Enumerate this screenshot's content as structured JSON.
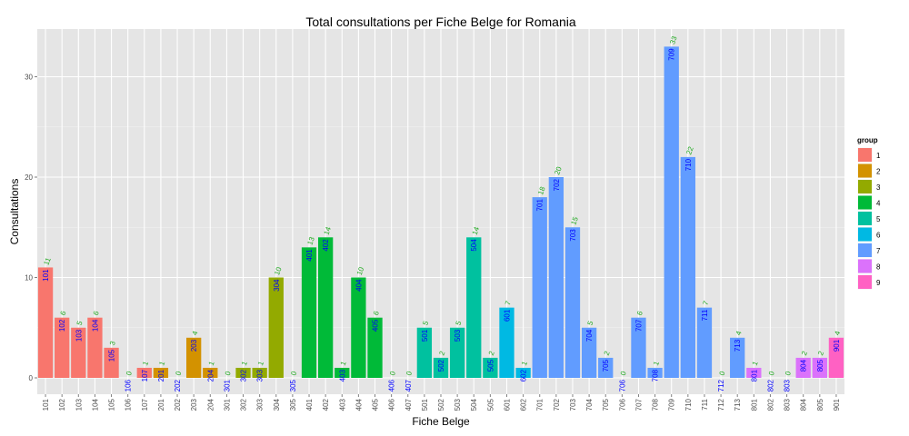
{
  "chart_data": {
    "type": "bar",
    "title": "Total consultations per Fiche Belge for Romania",
    "xlabel": "Fiche Belge",
    "ylabel": "Consultations",
    "ylim": [
      0,
      34
    ],
    "yticks": [
      0,
      10,
      20,
      30
    ],
    "grid": true,
    "legend_placement": "right",
    "legend_title": "group",
    "groups": [
      {
        "name": "1",
        "color": "#F8766D"
      },
      {
        "name": "2",
        "color": "#D39200"
      },
      {
        "name": "3",
        "color": "#93AA00"
      },
      {
        "name": "4",
        "color": "#00BA38"
      },
      {
        "name": "5",
        "color": "#00C19F"
      },
      {
        "name": "6",
        "color": "#00B9E3"
      },
      {
        "name": "7",
        "color": "#619CFF"
      },
      {
        "name": "8",
        "color": "#DB72FB"
      },
      {
        "name": "9",
        "color": "#FF61C3"
      }
    ],
    "categories": [
      "101",
      "102",
      "103",
      "104",
      "105",
      "106",
      "107",
      "201",
      "202",
      "203",
      "204",
      "301",
      "302",
      "303",
      "304",
      "305",
      "401",
      "402",
      "403",
      "404",
      "405",
      "406",
      "407",
      "501",
      "502",
      "503",
      "504",
      "505",
      "601",
      "602",
      "701",
      "702",
      "703",
      "704",
      "705",
      "706",
      "707",
      "708",
      "709",
      "710",
      "711",
      "712",
      "713",
      "801",
      "802",
      "803",
      "804",
      "805",
      "901"
    ],
    "values": [
      11,
      6,
      5,
      6,
      3,
      0,
      1,
      1,
      0,
      4,
      1,
      0,
      1,
      1,
      10,
      0,
      13,
      14,
      1,
      10,
      6,
      0,
      0,
      5,
      2,
      5,
      14,
      2,
      7,
      1,
      18,
      20,
      15,
      5,
      2,
      0,
      6,
      1,
      33,
      22,
      7,
      0,
      4,
      1,
      0,
      0,
      2,
      2,
      4
    ],
    "group_of": [
      "1",
      "1",
      "1",
      "1",
      "1",
      "1",
      "1",
      "2",
      "2",
      "2",
      "2",
      "3",
      "3",
      "3",
      "3",
      "3",
      "4",
      "4",
      "4",
      "4",
      "4",
      "4",
      "4",
      "5",
      "5",
      "5",
      "5",
      "5",
      "6",
      "6",
      "7",
      "7",
      "7",
      "7",
      "7",
      "7",
      "7",
      "7",
      "7",
      "7",
      "7",
      "7",
      "7",
      "8",
      "8",
      "8",
      "8",
      "8",
      "9"
    ]
  }
}
